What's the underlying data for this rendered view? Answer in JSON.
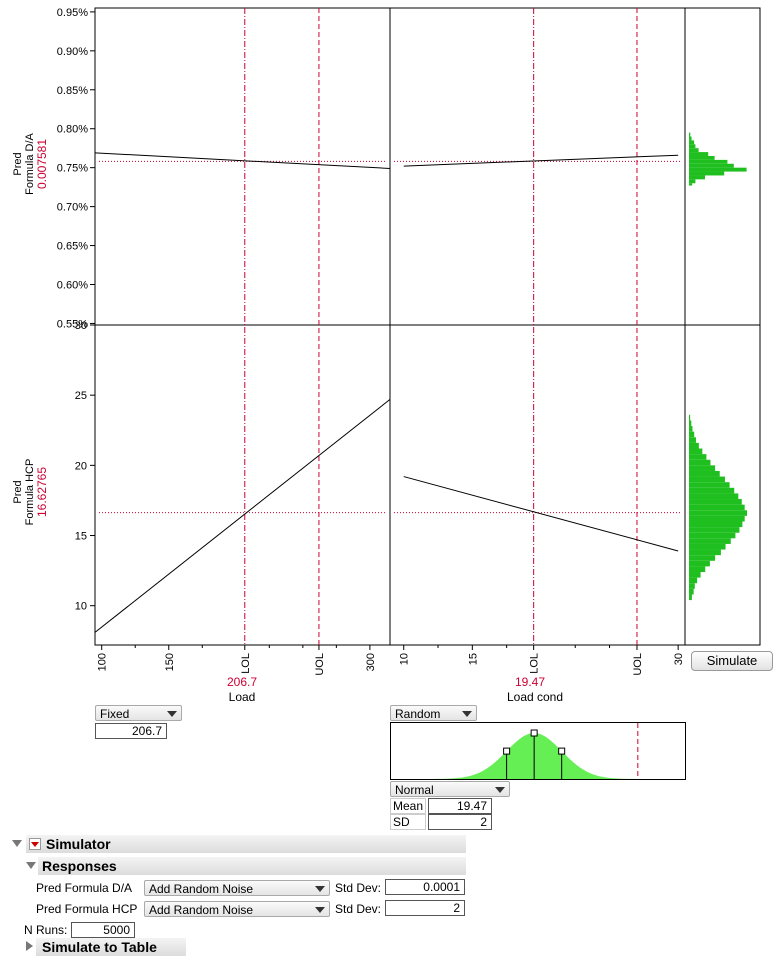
{
  "colors": {
    "accent_red": "#cc0033",
    "histogram_green": "#1fbf1f",
    "density_green": "#66ee55"
  },
  "profiler": {
    "responses": [
      {
        "label_line1": "Pred",
        "label_line2": "Formula D/A",
        "value": "0.007581",
        "ticks": [
          "0.95%",
          "0.90%",
          "0.85%",
          "0.80%",
          "0.75%",
          "0.70%",
          "0.65%",
          "0.60%",
          "0.55%"
        ]
      },
      {
        "label_line1": "Pred",
        "label_line2": "Formula HCP",
        "value": "16.62765",
        "ticks": [
          "30",
          "25",
          "20",
          "15",
          "10"
        ]
      }
    ],
    "factors": [
      {
        "name": "Load",
        "value": "206.7",
        "ticks": [
          "100",
          "150",
          "LOL",
          "UOL",
          "300"
        ],
        "mode": "Fixed",
        "fixed_value": "206.7"
      },
      {
        "name": "Load cond",
        "value": "19.47",
        "ticks": [
          "10",
          "15",
          "LOL",
          "UOL",
          "30"
        ],
        "mode": "Random",
        "distribution": "Normal",
        "mean_label": "Mean",
        "mean": "19.47",
        "sd_label": "SD",
        "sd": "2"
      }
    ],
    "simulate_button": "Simulate"
  },
  "chart_data": [
    {
      "type": "line",
      "title": "",
      "ylabel": "Pred Formula D/A",
      "xlabel": "Load",
      "series": [
        {
          "values": [
            [
              95,
              0.769
            ],
            [
              315,
              0.749
            ]
          ]
        }
      ],
      "current_x": 206.7,
      "current_y": 0.7581,
      "ylim": [
        0.55,
        0.95
      ]
    },
    {
      "type": "line",
      "title": "",
      "ylabel": "Pred Formula D/A",
      "xlabel": "Load cond",
      "series": [
        {
          "values": [
            [
              10,
              0.752
            ],
            [
              30,
              0.766
            ]
          ]
        }
      ],
      "current_x": 19.47,
      "current_y": 0.7581,
      "ylim": [
        0.55,
        0.95
      ]
    },
    {
      "type": "line",
      "title": "",
      "ylabel": "Pred Formula HCP",
      "xlabel": "Load",
      "series": [
        {
          "values": [
            [
              95,
              8.1
            ],
            [
              315,
              24.7
            ]
          ]
        }
      ],
      "current_x": 206.7,
      "current_y": 16.62765,
      "ylim": [
        7.5,
        30
      ]
    },
    {
      "type": "line",
      "title": "",
      "ylabel": "Pred Formula HCP",
      "xlabel": "Load cond",
      "series": [
        {
          "values": [
            [
              10,
              19.2
            ],
            [
              30,
              13.9
            ]
          ]
        }
      ],
      "current_x": 19.47,
      "current_y": 16.62765,
      "ylim": [
        7.5,
        30
      ]
    },
    {
      "type": "bar",
      "title": "",
      "ylabel": "Pred Formula D/A",
      "bins": [
        0.727,
        0.73,
        0.735,
        0.74,
        0.745,
        0.75,
        0.755,
        0.76,
        0.765,
        0.77,
        0.775,
        0.78,
        0.785,
        0.79
      ],
      "counts": [
        0.05,
        0.1,
        0.25,
        0.55,
        0.9,
        0.7,
        0.6,
        0.4,
        0.3,
        0.15,
        0.1,
        0.08,
        0.04,
        0.02
      ]
    },
    {
      "type": "bar",
      "title": "",
      "ylabel": "Pred Formula HCP",
      "bins": [
        10.4,
        10.8,
        11.2,
        11.6,
        12.0,
        12.4,
        12.8,
        13.2,
        13.6,
        14.0,
        14.4,
        14.8,
        15.2,
        15.6,
        16.0,
        16.4,
        16.8,
        17.2,
        17.6,
        18.0,
        18.4,
        18.8,
        19.2,
        19.6,
        20.0,
        20.4,
        20.8,
        21.2,
        21.6,
        22.0,
        22.4,
        22.8,
        23.2
      ],
      "counts": [
        0.05,
        0.08,
        0.1,
        0.14,
        0.2,
        0.28,
        0.36,
        0.45,
        0.55,
        0.63,
        0.72,
        0.8,
        0.87,
        0.92,
        0.96,
        1.0,
        0.96,
        0.91,
        0.85,
        0.78,
        0.7,
        0.62,
        0.53,
        0.45,
        0.37,
        0.3,
        0.23,
        0.17,
        0.12,
        0.09,
        0.06,
        0.04,
        0.02
      ]
    }
  ],
  "simulator": {
    "title": "Simulator",
    "responses_title": "Responses",
    "rows": [
      {
        "name": "Pred Formula D/A",
        "noise": "Add Random Noise",
        "std_label": "Std Dev:",
        "std": "0.0001"
      },
      {
        "name": "Pred Formula HCP",
        "noise": "Add Random Noise",
        "std_label": "Std Dev:",
        "std": "2"
      }
    ],
    "nruns_label": "N Runs:",
    "nruns": "5000",
    "simulate_to_table": "Simulate to Table"
  }
}
